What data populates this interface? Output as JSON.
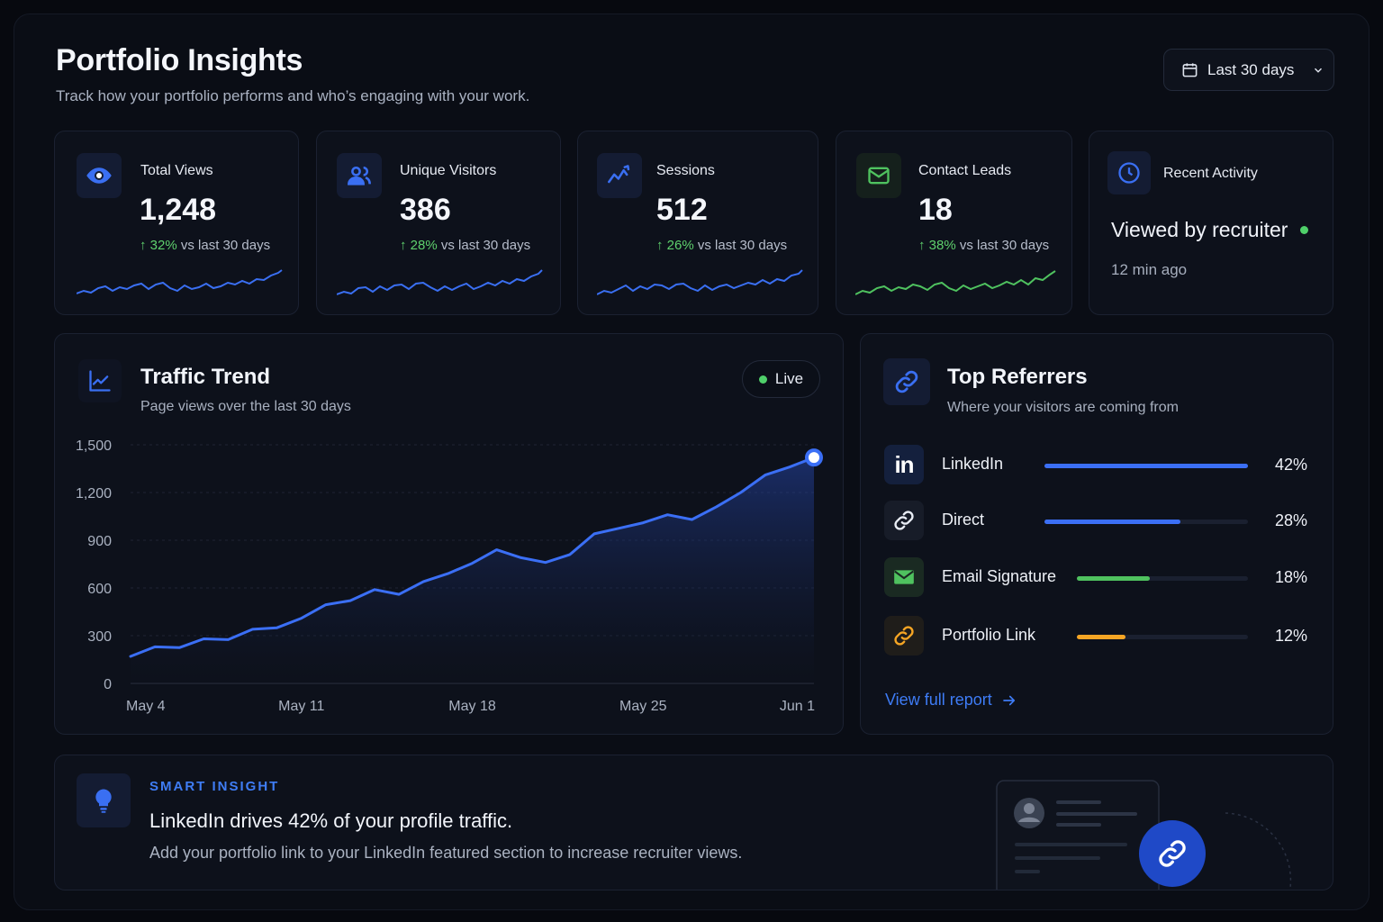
{
  "header": {
    "title": "Portfolio Insights",
    "subtitle": "Track how your portfolio performs and who’s engaging with your work.",
    "date_range": "Last 30 days"
  },
  "stats": [
    {
      "label": "Total Views",
      "value": "1,248",
      "delta_pct": "32%",
      "delta_text": "vs last 30 days",
      "icon": "eye-icon",
      "trend_color": "#3a6ff2"
    },
    {
      "label": "Unique Visitors",
      "value": "386",
      "delta_pct": "28%",
      "delta_text": "vs last 30 days",
      "icon": "users-icon",
      "trend_color": "#3a6ff2"
    },
    {
      "label": "Sessions",
      "value": "512",
      "delta_pct": "26%",
      "delta_text": "vs last 30 days",
      "icon": "activity-icon",
      "trend_color": "#3a6ff2"
    },
    {
      "label": "Contact Leads",
      "value": "18",
      "delta_pct": "38%",
      "delta_text": "vs last 30 days",
      "icon": "mail-icon",
      "trend_color": "#4fc25f"
    }
  ],
  "recent_activity": {
    "label": "Recent Activity",
    "value": "Viewed by recruiter",
    "time": "12 min ago",
    "icon": "clock-icon"
  },
  "traffic": {
    "title": "Traffic Trend",
    "subtitle": "Page views over the last 30 days",
    "live_label": "Live",
    "accent": "#3b6ff5"
  },
  "chart_data": {
    "type": "area",
    "title": "Traffic Trend",
    "subtitle": "Page views over the last 30 days",
    "x_tick_labels": [
      "May 4",
      "May 11",
      "May 18",
      "May 25",
      "Jun 1"
    ],
    "y_tick_labels": [
      "0",
      "300",
      "600",
      "900",
      "1,200",
      "1,500"
    ],
    "ylim": [
      0,
      1500
    ],
    "grid": true,
    "x": [
      "May 4",
      "May 5",
      "May 6",
      "May 7",
      "May 8",
      "May 9",
      "May 10",
      "May 11",
      "May 12",
      "May 13",
      "May 14",
      "May 15",
      "May 16",
      "May 17",
      "May 18",
      "May 19",
      "May 20",
      "May 21",
      "May 22",
      "May 23",
      "May 24",
      "May 25",
      "May 26",
      "May 27",
      "May 28",
      "May 29",
      "May 30",
      "May 31",
      "Jun 1"
    ],
    "series": [
      {
        "values": [
          170,
          230,
          225,
          280,
          275,
          340,
          350,
          410,
          495,
          520,
          590,
          560,
          640,
          690,
          755,
          840,
          790,
          760,
          810,
          940,
          975,
          1010,
          1060,
          1030,
          1110,
          1200,
          1310,
          1360,
          1420
        ]
      }
    ]
  },
  "referrers": {
    "title": "Top Referrers",
    "subtitle": "Where your visitors are coming from",
    "items": [
      {
        "name": "LinkedIn",
        "pct": "42%",
        "value": 42,
        "color": "#3b6ff5",
        "icon": "linkedin-icon"
      },
      {
        "name": "Direct",
        "pct": "28%",
        "value": 28,
        "color": "#3b6ff5",
        "icon": "link-icon"
      },
      {
        "name": "Email Signature",
        "pct": "18%",
        "value": 18,
        "color": "#4fc25f",
        "icon": "mail-icon"
      },
      {
        "name": "Portfolio Link",
        "pct": "12%",
        "value": 12,
        "color": "#f5a524",
        "icon": "link-icon"
      }
    ],
    "view_report": "View full report"
  },
  "insight": {
    "eyebrow": "SMART INSIGHT",
    "title": "LinkedIn drives 42% of your profile traffic.",
    "body": "Add your portfolio link to your LinkedIn featured section to increase recruiter views.",
    "icon": "lightbulb-icon"
  }
}
